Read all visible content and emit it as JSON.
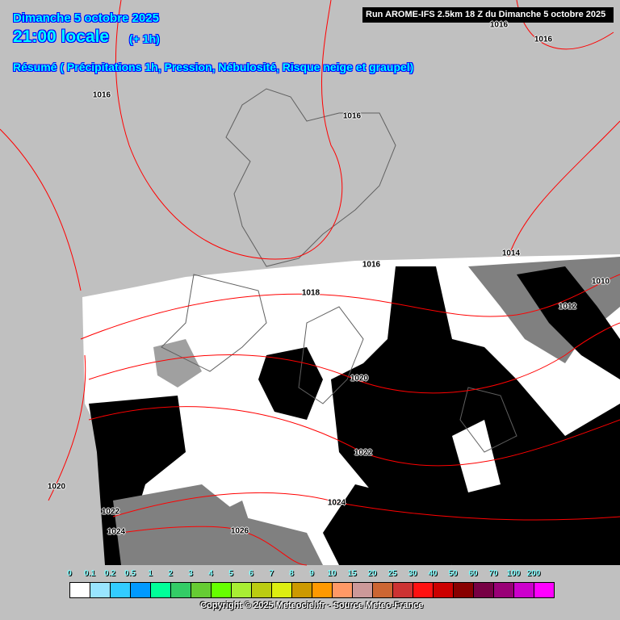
{
  "header": {
    "date": "Dimanche 5 octobre 2025",
    "time": "21:00 locale",
    "offset": "(+ 1h)",
    "summary": "Résumé ( Précipitations 1h, Pression, Nébulosité, Risque neige et graupel)",
    "run": "Run AROME-IFS 2.5km 18 Z du Dimanche 5 octobre 2025"
  },
  "isobar_labels": [
    "1016",
    "1016",
    "1016",
    "1016",
    "1016",
    "1018",
    "1014",
    "1010",
    "1012",
    "1020",
    "1022",
    "1024",
    "1020",
    "1022",
    "1024",
    "1026"
  ],
  "legend": {
    "labels": [
      "0",
      "0.1",
      "0.2",
      "0.5",
      "1",
      "2",
      "3",
      "4",
      "5",
      "6",
      "7",
      "8",
      "9",
      "10",
      "15",
      "20",
      "25",
      "30",
      "40",
      "50",
      "60",
      "70",
      "100",
      "200"
    ],
    "colors": [
      "#ffffff",
      "#99e5ff",
      "#33ccff",
      "#0099ff",
      "#00ff99",
      "#33cc66",
      "#66cc33",
      "#66ff00",
      "#a8ee33",
      "#bbcc11",
      "#ddee11",
      "#cc9900",
      "#ff9900",
      "#ff9966",
      "#cc9999",
      "#cc6633",
      "#cc3333",
      "#ff1111",
      "#cc0000",
      "#880000",
      "#770044",
      "#990077",
      "#cc00cc",
      "#ff00ff"
    ]
  },
  "copyright": "Copyright © 2025 Meteociel.fr - Source Meteo-France",
  "colors": {
    "background": "#c0c0c0",
    "isobar": "#ff0000",
    "coast": "#606060",
    "header_text": "#00ffff"
  }
}
